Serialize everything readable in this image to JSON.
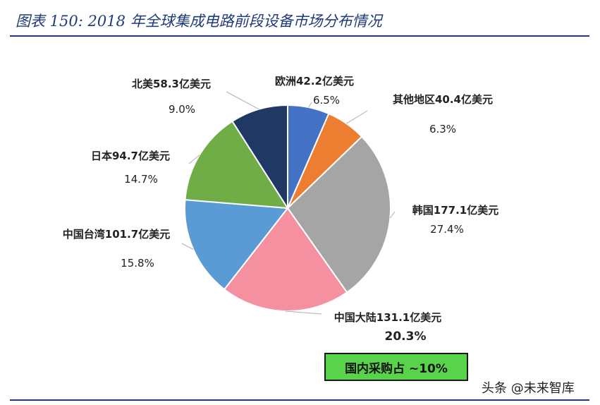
{
  "header": {
    "title": "图表 150:  2018 年全球集成电路前段设备市场分布情况"
  },
  "chart_data": {
    "type": "pie",
    "title": "图表 150:  2018 年全球集成电路前段设备市场分布情况",
    "slices": [
      {
        "label": "欧洲",
        "value": 42.2,
        "display": "欧洲42.2亿美元",
        "pct": "6.5%",
        "pct_value": 6.5,
        "color": "#4472c4"
      },
      {
        "label": "其他地区",
        "value": 40.4,
        "display": "其他地区40.4亿美元",
        "pct": "6.3%",
        "pct_value": 6.3,
        "color": "#ed7d31"
      },
      {
        "label": "韩国",
        "value": 177.1,
        "display": "韩国177.1亿美元",
        "pct": "27.4%",
        "pct_value": 27.4,
        "color": "#a5a5a5"
      },
      {
        "label": "中国大陆",
        "value": 131.1,
        "display": "中国大陆131.1亿美元",
        "pct": "20.3%",
        "pct_value": 20.3,
        "color": "#f4909f"
      },
      {
        "label": "中国台湾",
        "value": 101.7,
        "display": "中国台湾101.7亿美元",
        "pct": "15.8%",
        "pct_value": 15.8,
        "color": "#5b9bd5"
      },
      {
        "label": "日本",
        "value": 94.7,
        "display": "日本94.7亿美元",
        "pct": "14.7%",
        "pct_value": 14.7,
        "color": "#70ad47"
      },
      {
        "label": "北美",
        "value": 58.3,
        "display": "北美58.3亿美元",
        "pct": "9.0%",
        "pct_value": 9.0,
        "color": "#203864"
      }
    ],
    "annotation": "国内采购占 ~10%",
    "unit": "亿美元"
  },
  "watermark": "头条 @未来智库"
}
